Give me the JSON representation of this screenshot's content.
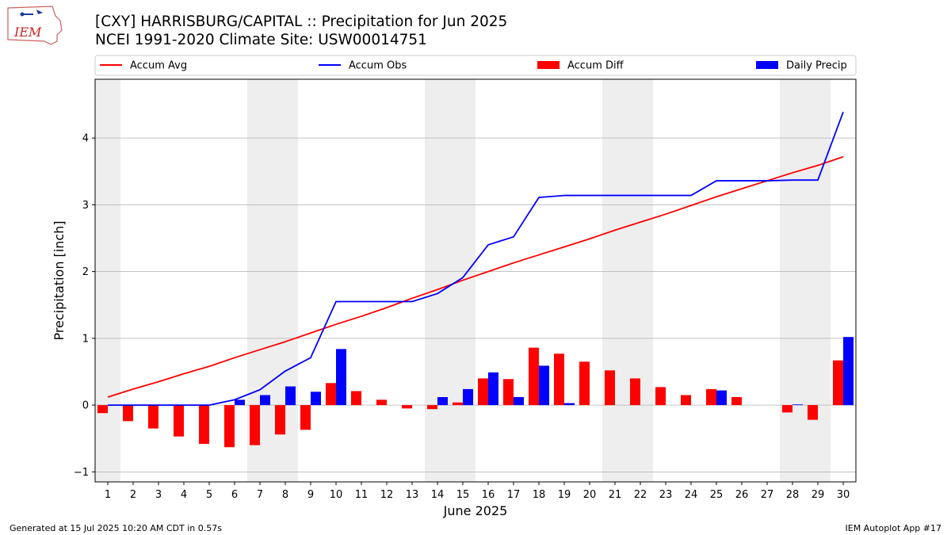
{
  "header": {
    "title": "[CXY] HARRISBURG/CAPITAL :: Precipitation for Jun 2025",
    "subtitle": "NCEI 1991-2020 Climate Site: USW00014751",
    "logo_text": "IEM"
  },
  "footer": {
    "generated": "Generated at 15 Jul 2025 10:20 AM CDT in 0.57s",
    "app": "IEM Autoplot App #17"
  },
  "colors": {
    "avg": "#ff0000",
    "obs": "#0000ff",
    "diff": "#ff0000",
    "daily": "#0000ff",
    "weekend_shade": "#eeeeee",
    "grid": "#b0b0b0"
  },
  "chart_data": {
    "type": "bar",
    "xlabel": "June 2025",
    "ylabel": "Precipitation [inch]",
    "ylim": [
      -1.15,
      4.88
    ],
    "yticks": [
      -1,
      0,
      1,
      2,
      3,
      4
    ],
    "grid": "horizontal",
    "legend_placement": "top",
    "categories": [
      "1",
      "2",
      "3",
      "4",
      "5",
      "6",
      "7",
      "8",
      "9",
      "10",
      "11",
      "12",
      "13",
      "14",
      "15",
      "16",
      "17",
      "18",
      "19",
      "20",
      "21",
      "22",
      "23",
      "24",
      "25",
      "26",
      "27",
      "28",
      "29",
      "30"
    ],
    "weekend_days": [
      1,
      7,
      8,
      14,
      15,
      21,
      22,
      28,
      29
    ],
    "series": [
      {
        "name": "Accum Avg",
        "kind": "line",
        "values": [
          0.12,
          0.24,
          0.35,
          0.47,
          0.58,
          0.71,
          0.83,
          0.95,
          1.08,
          1.21,
          1.33,
          1.46,
          1.6,
          1.73,
          1.87,
          2.0,
          2.13,
          2.25,
          2.37,
          2.49,
          2.62,
          2.74,
          2.86,
          2.99,
          3.12,
          3.24,
          3.36,
          3.48,
          3.59,
          3.72
        ]
      },
      {
        "name": "Accum Obs",
        "kind": "line",
        "values": [
          0.0,
          0.0,
          0.0,
          0.0,
          0.0,
          0.08,
          0.23,
          0.51,
          0.71,
          1.55,
          1.55,
          1.55,
          1.55,
          1.67,
          1.91,
          2.4,
          2.52,
          3.11,
          3.14,
          3.14,
          3.14,
          3.14,
          3.14,
          3.14,
          3.36,
          3.36,
          3.36,
          3.37,
          3.37,
          4.39
        ]
      },
      {
        "name": "Accum Diff",
        "kind": "bar",
        "values": [
          -0.12,
          -0.24,
          -0.35,
          -0.47,
          -0.58,
          -0.63,
          -0.6,
          -0.44,
          -0.37,
          0.33,
          0.21,
          0.08,
          -0.05,
          -0.06,
          0.04,
          0.4,
          0.39,
          0.86,
          0.77,
          0.65,
          0.52,
          0.4,
          0.27,
          0.15,
          0.24,
          0.12,
          0.0,
          -0.11,
          -0.22,
          0.67
        ]
      },
      {
        "name": "Daily Precip",
        "kind": "bar",
        "values": [
          0.0,
          0.0,
          0.0,
          0.0,
          0.0,
          0.08,
          0.15,
          0.28,
          0.2,
          0.84,
          0.0,
          0.0,
          0.0,
          0.12,
          0.24,
          0.49,
          0.12,
          0.59,
          0.03,
          0.0,
          0.0,
          0.0,
          0.0,
          0.0,
          0.22,
          0.0,
          0.0,
          0.01,
          0.0,
          1.02
        ]
      }
    ]
  }
}
